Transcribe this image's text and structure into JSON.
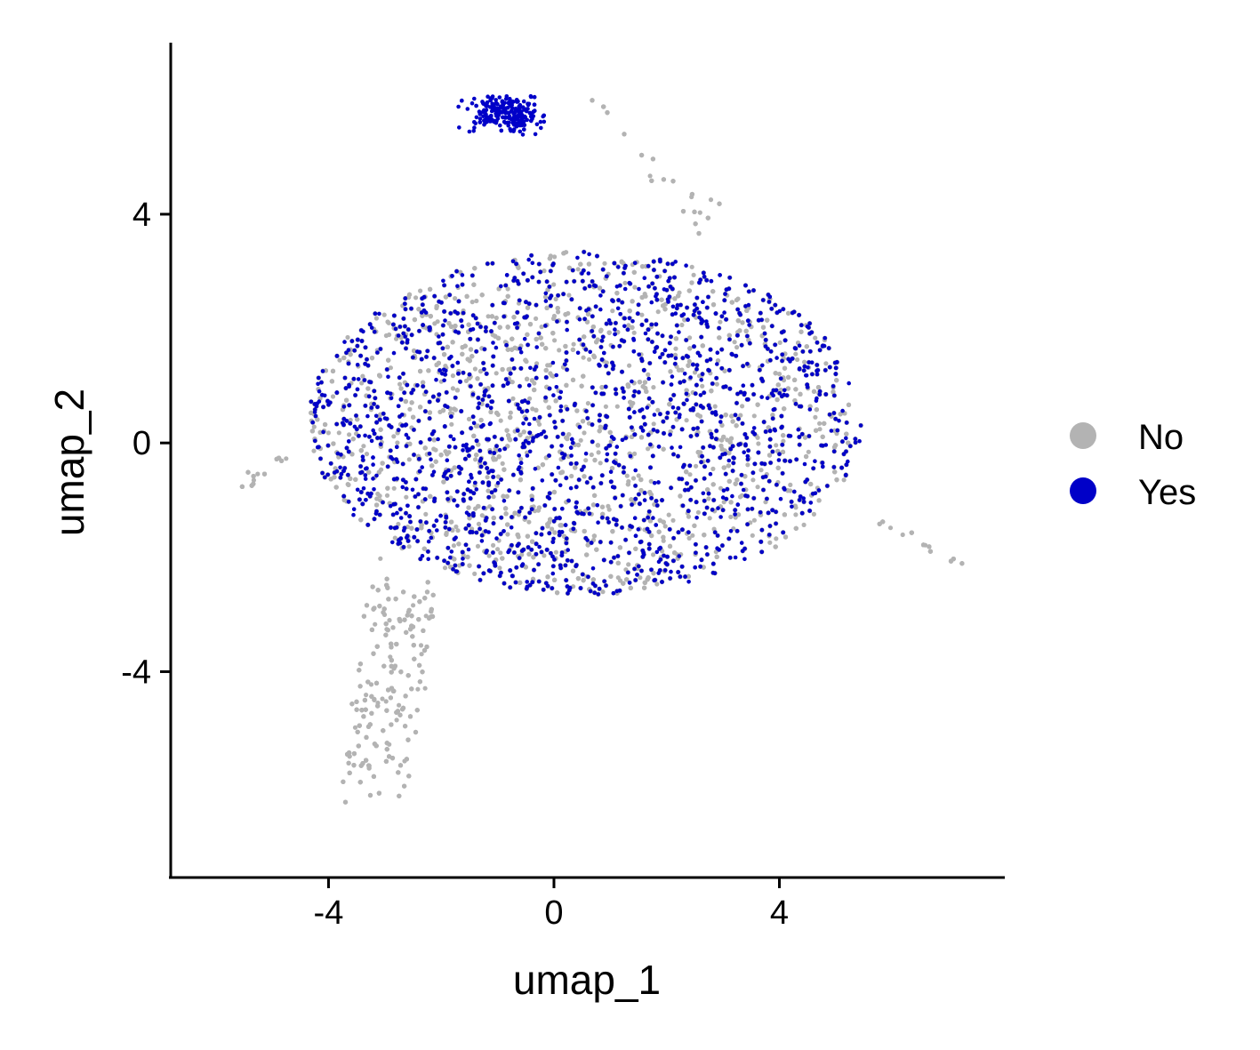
{
  "chart_data": {
    "type": "scatter",
    "xlabel": "umap_1",
    "ylabel": "umap_2",
    "xlim": [
      -6.8,
      8.0
    ],
    "ylim": [
      -7.6,
      7.0
    ],
    "xticks": [
      "-4",
      "0",
      "4"
    ],
    "yticks": [
      "-4",
      "0",
      "4"
    ],
    "grid": false,
    "legend_position": "right",
    "series": [
      {
        "name": "No",
        "color": "#b3b3b3"
      },
      {
        "name": "Yes",
        "color": "#0000c8"
      }
    ],
    "point_counts": {
      "No": 9000,
      "Yes": 2200
    },
    "regions": [
      {
        "label": "main body",
        "center": [
          0.5,
          0.3
        ],
        "spread": [
          2.8,
          1.8
        ]
      },
      {
        "label": "upper lobe",
        "center": [
          -0.8,
          5.7
        ],
        "spread": [
          0.55,
          0.25
        ]
      },
      {
        "label": "lower tail",
        "center": [
          -3.1,
          -5.9
        ],
        "spread": [
          0.45,
          0.6
        ]
      },
      {
        "label": "right tail",
        "center": [
          7.1,
          -2.0
        ],
        "spread": [
          0.2,
          0.05
        ]
      }
    ]
  }
}
